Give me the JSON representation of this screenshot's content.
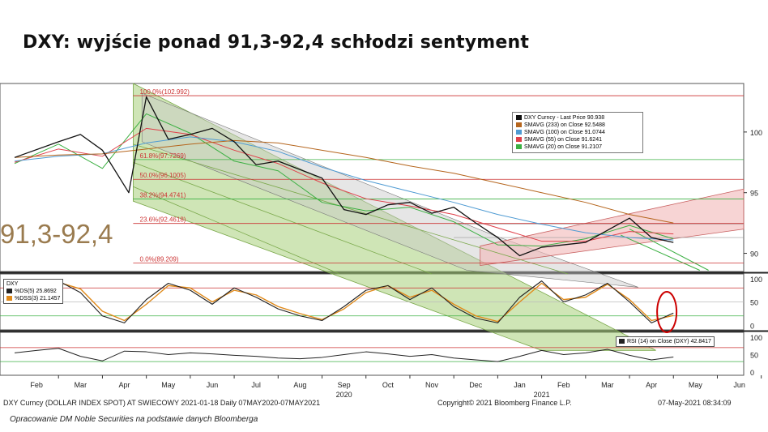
{
  "title": "DXY: wyjście ponad 91,3-92,4 schłodzi sentyment",
  "annotation_range": "91,3-92,4",
  "footer": {
    "left": "DXY Curncy (DOLLAR INDEX SPOT) AT SWIECOWY 2021-01-18  Daily 07MAY2020-07MAY2021",
    "mid": "Copyright© 2021 Bloomberg Finance L.P.",
    "right": "07-May-2021 08:34:09",
    "credit": "Opracowanie DM Noble Securities na podstawie danych Bloomberga"
  },
  "colors": {
    "price": "#111111",
    "sma233": "#b5651d",
    "sma100": "#4f9bd3",
    "sma55": "#e0404a",
    "sma20": "#3cb043",
    "fib": "#cc3333",
    "fib_label": "#cc3333",
    "channel_fill": "#a8cf7a",
    "upchannel_fill": "#f2b8b8",
    "grey_channel": "#c8c8c8",
    "ds5": "#222222",
    "dss3": "#e08a1a",
    "rsi": "#222222",
    "circle": "#cc0000"
  },
  "chart_data": [
    {
      "type": "line",
      "panel": "price",
      "title": "DXY Curncy",
      "x_tick_labels": [
        "Feb",
        "Mar",
        "Apr",
        "May",
        "Jun",
        "Jul",
        "Aug",
        "Sep",
        "Oct",
        "Nov",
        "Dec",
        "Jan",
        "Feb",
        "Mar",
        "Apr",
        "May",
        "Jun"
      ],
      "year_labels": [
        "2020",
        "2021"
      ],
      "y_tick_labels": [
        "100",
        "95",
        "90"
      ],
      "ylim": [
        88.5,
        104
      ],
      "legend": [
        {
          "label": "DXY Curncy - Last Price",
          "value": "90.938"
        },
        {
          "label": "SMAVG (233)  on Close",
          "value": "92.5488"
        },
        {
          "label": "SMAVG (100)  on Close",
          "value": "91.0744"
        },
        {
          "label": "SMAVG (55)  on Close",
          "value": "91.6241"
        },
        {
          "label": "SMAVG (20)  on Close",
          "value": "91.2107"
        }
      ],
      "fib_levels": [
        {
          "label": "100.0%(102.992)",
          "value": 102.992
        },
        {
          "label": "61.8%(97.7269)",
          "value": 97.7269
        },
        {
          "label": "50.0%(96.1005)",
          "value": 96.1005
        },
        {
          "label": "38.2%(94.4741)",
          "value": 94.4741
        },
        {
          "label": "23.6%(92.4618)",
          "value": 92.4618
        },
        {
          "label": "0.0%(89.209)",
          "value": 89.209
        }
      ],
      "horizontal_levels": [
        91.3,
        92.4
      ],
      "series": [
        {
          "name": "DXY Curncy - Last Price",
          "x": [
            0,
            1,
            1.5,
            2,
            2.6,
            3,
            3.5,
            4,
            4.5,
            5,
            5.5,
            6,
            6.5,
            7,
            7.5,
            8,
            8.5,
            9,
            9.5,
            10,
            10.5,
            11,
            11.5,
            12,
            12.5,
            13,
            13.5,
            14,
            14.5,
            15
          ],
          "values": [
            97.9,
            99.2,
            99.8,
            98.5,
            95.0,
            102.9,
            99.4,
            99.8,
            100.3,
            99.2,
            97.3,
            97.6,
            96.9,
            96.2,
            93.6,
            93.2,
            94.0,
            94.2,
            93.3,
            93.8,
            92.5,
            91.3,
            89.8,
            90.5,
            90.7,
            90.9,
            91.9,
            92.9,
            91.3,
            90.9
          ]
        },
        {
          "name": "SMAVG (233)  on Close",
          "x": [
            0,
            1,
            2,
            3,
            4,
            5,
            6,
            7,
            8,
            9,
            10,
            11,
            12,
            13,
            14,
            15
          ],
          "values": [
            97.9,
            98.1,
            98.2,
            98.6,
            99.0,
            99.3,
            99.1,
            98.5,
            97.9,
            97.2,
            96.6,
            95.8,
            95.0,
            94.2,
            93.2,
            92.5
          ]
        },
        {
          "name": "SMAVG (100)  on Close",
          "x": [
            0,
            1,
            2,
            3,
            4,
            5,
            6,
            7,
            8,
            9,
            10,
            11,
            12,
            13,
            14,
            15
          ],
          "values": [
            97.6,
            98.0,
            98.2,
            99.1,
            99.6,
            99.2,
            98.4,
            97.1,
            96.0,
            95.1,
            94.2,
            93.2,
            92.4,
            91.7,
            91.3,
            91.1
          ]
        },
        {
          "name": "SMAVG (55)  on Close",
          "x": [
            0,
            1,
            2,
            3,
            4,
            5,
            6,
            7,
            8,
            9,
            10,
            11,
            12,
            13,
            14,
            15
          ],
          "values": [
            97.5,
            98.6,
            98.0,
            100.3,
            99.8,
            98.5,
            97.4,
            95.8,
            94.5,
            93.9,
            93.2,
            92.1,
            91.0,
            91.0,
            91.8,
            91.6
          ]
        },
        {
          "name": "SMAVG (20)  on Close",
          "x": [
            0,
            1,
            2,
            3,
            4,
            5,
            6,
            7,
            8,
            9,
            10,
            11,
            12,
            13,
            14,
            15
          ],
          "values": [
            97.4,
            99.0,
            97.0,
            101.5,
            99.9,
            97.6,
            96.8,
            94.2,
            93.5,
            93.8,
            92.6,
            90.7,
            90.6,
            91.2,
            92.3,
            91.2
          ]
        }
      ]
    },
    {
      "type": "line",
      "panel": "stochastic",
      "title": "DXY",
      "y_tick_labels": [
        "100",
        "50",
        "0"
      ],
      "ylim": [
        -10,
        110
      ],
      "legend": [
        {
          "label": "%DS(5)",
          "value": "25.8692"
        },
        {
          "label": "%DSS(3)",
          "value": "21.1457"
        }
      ],
      "series": [
        {
          "name": "%DS(5)",
          "x": [
            0,
            0.5,
            1,
            1.5,
            2,
            2.5,
            3,
            3.5,
            4,
            4.5,
            5,
            5.5,
            6,
            6.5,
            7,
            7.5,
            8,
            8.5,
            9,
            9.5,
            10,
            10.5,
            11,
            11.5,
            12,
            12.5,
            13,
            13.5,
            14,
            14.5,
            15
          ],
          "values": [
            60,
            80,
            95,
            70,
            20,
            5,
            55,
            90,
            75,
            45,
            80,
            60,
            35,
            20,
            10,
            40,
            75,
            85,
            55,
            80,
            40,
            15,
            5,
            60,
            95,
            50,
            65,
            90,
            50,
            5,
            26
          ]
        },
        {
          "name": "%DSS(3)",
          "x": [
            0,
            0.5,
            1,
            1.5,
            2,
            2.5,
            3,
            3.5,
            4,
            4.5,
            5,
            5.5,
            6,
            6.5,
            7,
            7.5,
            8,
            8.5,
            9,
            9.5,
            10,
            10.5,
            11,
            11.5,
            12,
            12.5,
            13,
            13.5,
            14,
            14.5,
            15
          ],
          "values": [
            55,
            75,
            92,
            78,
            30,
            10,
            45,
            85,
            80,
            50,
            75,
            65,
            40,
            25,
            12,
            35,
            70,
            85,
            60,
            75,
            45,
            20,
            8,
            50,
            90,
            55,
            60,
            88,
            55,
            10,
            21
          ]
        }
      ]
    },
    {
      "type": "line",
      "panel": "rsi",
      "y_tick_labels": [
        "100",
        "50",
        "0"
      ],
      "ylim": [
        0,
        100
      ],
      "legend": [
        {
          "label": "RSI (14)  on Close (DXY)",
          "value": "42.8417"
        }
      ],
      "series": [
        {
          "name": "RSI (14)  on Close (DXY)",
          "x": [
            0,
            0.5,
            1,
            1.5,
            2,
            2.5,
            3,
            3.5,
            4,
            4.5,
            5,
            5.5,
            6,
            6.5,
            7,
            7.5,
            8,
            8.5,
            9,
            9.5,
            10,
            10.5,
            11,
            11.5,
            12,
            12.5,
            13,
            13.5,
            14,
            14.5,
            15
          ],
          "values": [
            55,
            62,
            68,
            45,
            32,
            60,
            58,
            50,
            55,
            52,
            48,
            45,
            40,
            38,
            42,
            50,
            58,
            52,
            45,
            50,
            40,
            35,
            30,
            45,
            62,
            50,
            55,
            65,
            48,
            35,
            43
          ]
        }
      ]
    }
  ]
}
